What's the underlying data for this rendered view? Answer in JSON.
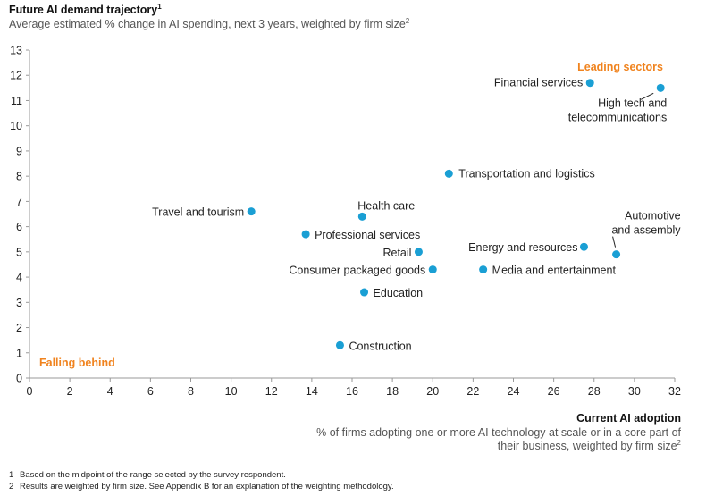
{
  "header": {
    "title": "Future AI demand trajectory",
    "title_sup": "1",
    "subtitle": "Average estimated % change in AI spending, next 3 years, weighted by firm size",
    "subtitle_sup": "2"
  },
  "x_axis": {
    "title": "Current AI adoption",
    "description": "% of firms adopting one or more AI technology at scale or in a core part of their business, weighted by firm size",
    "description_sup": "2"
  },
  "footnotes": [
    {
      "num": "1",
      "text": "Based on the midpoint of the range selected by the survey respondent."
    },
    {
      "num": "2",
      "text": "Results are weighted by firm size. See Appendix B for an explanation of the weighting methodology."
    }
  ],
  "chart_data": {
    "type": "scatter",
    "xlim": [
      0,
      32
    ],
    "ylim": [
      0,
      13
    ],
    "x_ticks": [
      0,
      2,
      4,
      6,
      8,
      10,
      12,
      14,
      16,
      18,
      20,
      22,
      24,
      26,
      28,
      30,
      32
    ],
    "y_ticks": [
      0,
      1,
      2,
      3,
      4,
      5,
      6,
      7,
      8,
      9,
      10,
      11,
      12,
      13
    ],
    "grid": false,
    "point_color": "#1a9fd4",
    "annotation_color": "#f0831e",
    "annotations": [
      {
        "text": "Leading sectors",
        "position": "top-right"
      },
      {
        "text": "Falling behind",
        "position": "bottom-left"
      }
    ],
    "points": [
      {
        "label": "Financial services",
        "x": 27.8,
        "y": 11.7
      },
      {
        "label": "High tech and telecommunications",
        "x": 31.3,
        "y": 11.5
      },
      {
        "label": "Transportation and logistics",
        "x": 20.8,
        "y": 8.1
      },
      {
        "label": "Travel and tourism",
        "x": 11.0,
        "y": 6.6
      },
      {
        "label": "Health care",
        "x": 16.5,
        "y": 6.4
      },
      {
        "label": "Professional services",
        "x": 13.7,
        "y": 5.7
      },
      {
        "label": "Retail",
        "x": 19.3,
        "y": 5.0
      },
      {
        "label": "Energy and resources",
        "x": 27.5,
        "y": 5.2
      },
      {
        "label": "Automotive and assembly",
        "x": 29.1,
        "y": 4.9
      },
      {
        "label": "Consumer packaged goods",
        "x": 20.0,
        "y": 4.3
      },
      {
        "label": "Media and entertainment",
        "x": 22.5,
        "y": 4.3
      },
      {
        "label": "Education",
        "x": 16.6,
        "y": 3.4
      },
      {
        "label": "Construction",
        "x": 15.4,
        "y": 1.3
      }
    ]
  }
}
